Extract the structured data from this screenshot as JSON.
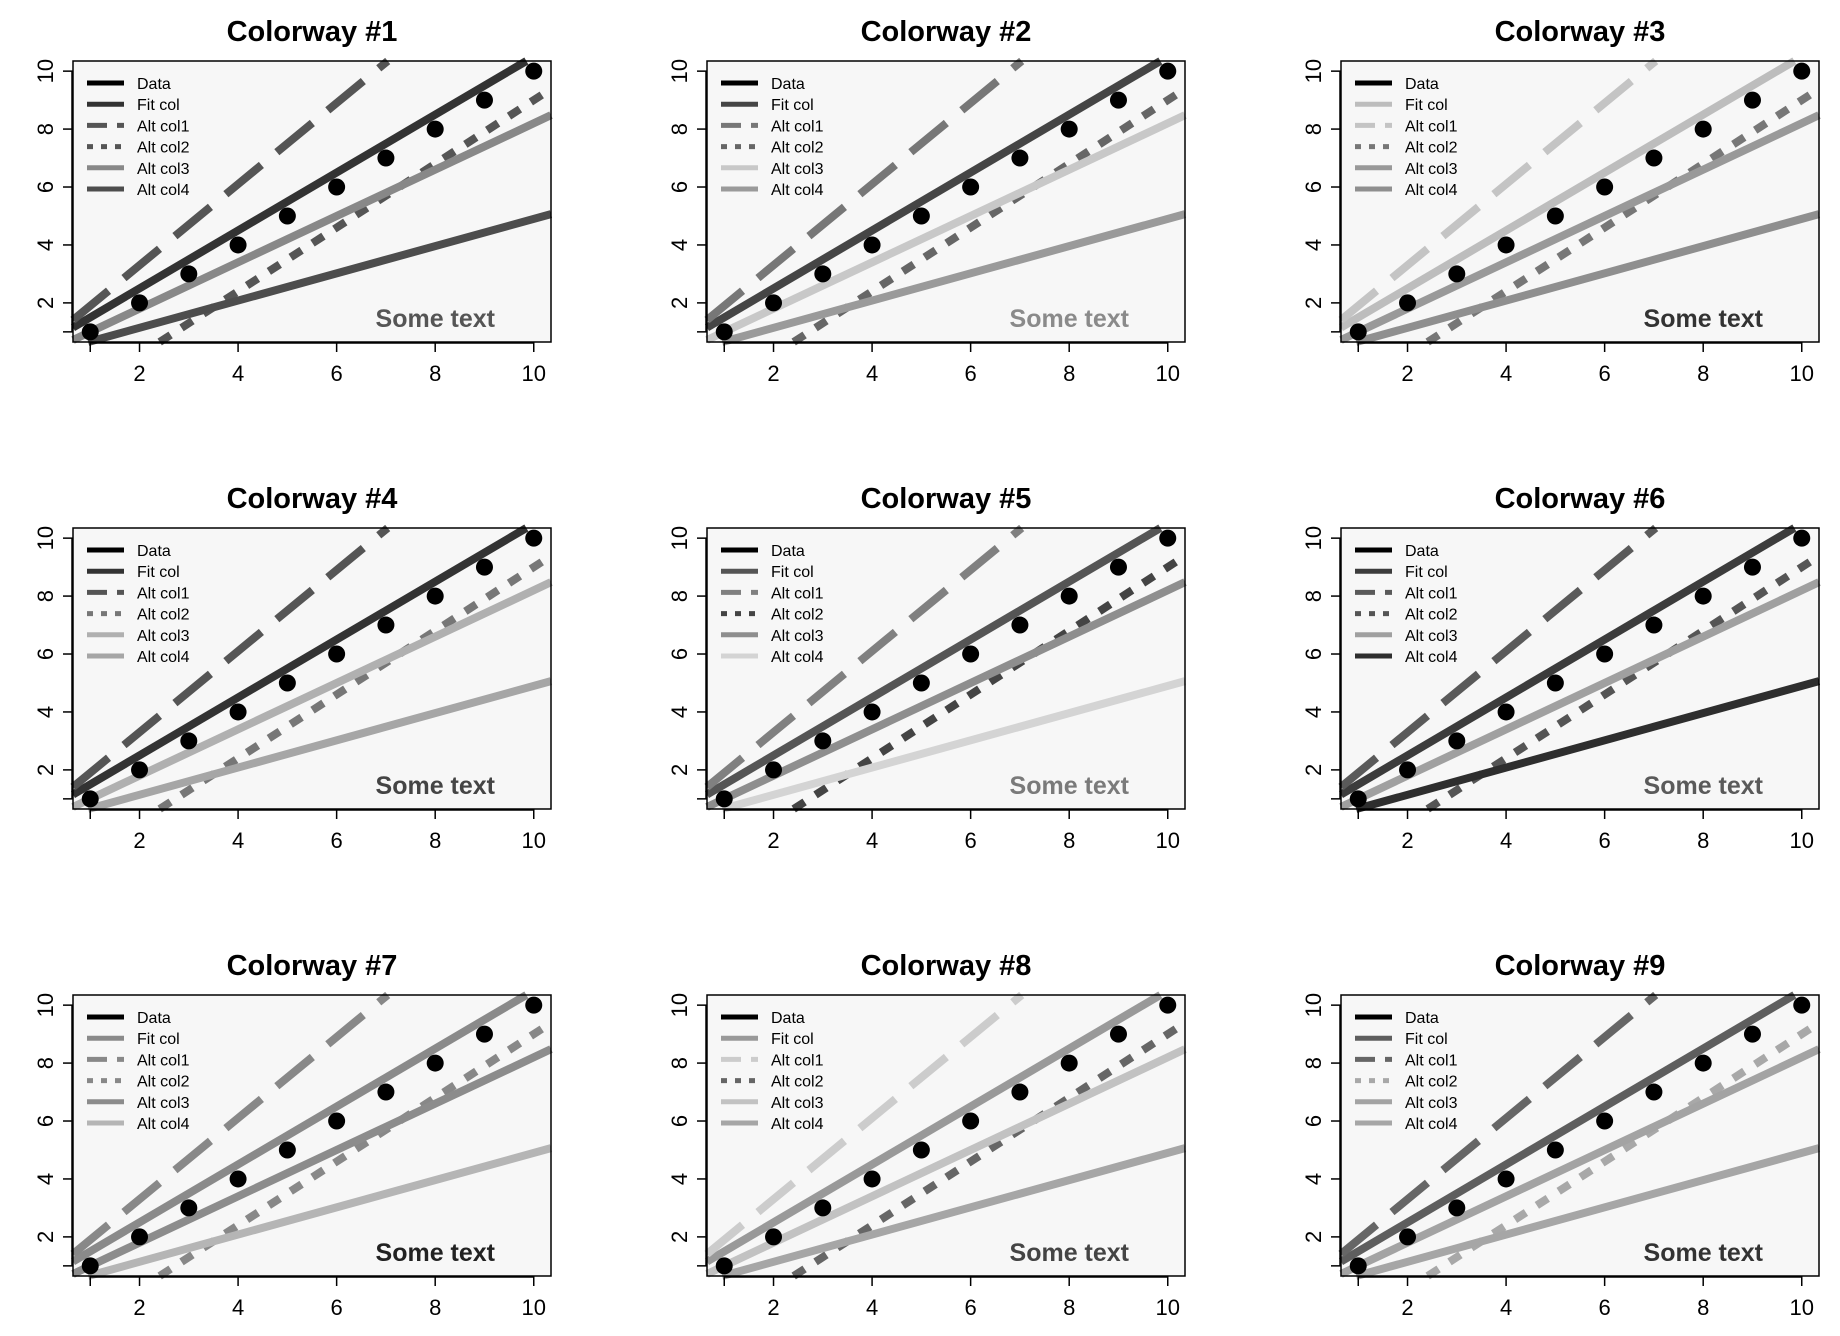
{
  "chart_data": [
    {
      "type": "line",
      "title": "Colorway #1",
      "x": [
        1,
        2,
        3,
        4,
        5,
        6,
        7,
        8,
        9,
        10
      ],
      "xlim": [
        0.65,
        10.35
      ],
      "ylim": [
        0.65,
        10.35
      ],
      "xticks": [
        "2",
        "4",
        "6",
        "8",
        "10"
      ],
      "yticks": [
        "2",
        "4",
        "6",
        "8",
        "10"
      ],
      "grid": false,
      "legend_position": "top-left",
      "annotation": "Some text",
      "annotation_color": "#555555",
      "series": [
        {
          "name": "Data",
          "kind": "points",
          "color": "#000000",
          "values": [
            1,
            2,
            3,
            4,
            5,
            6,
            7,
            8,
            9,
            10
          ]
        },
        {
          "name": "Fit col",
          "kind": "line",
          "dash": "solid",
          "color": "#333333",
          "intercept": 0.5,
          "slope": 1.0
        },
        {
          "name": "Alt col1",
          "kind": "line",
          "dash": "long",
          "color": "#555555",
          "intercept": 0.5,
          "slope": 1.4
        },
        {
          "name": "Alt col2",
          "kind": "line",
          "dash": "short",
          "color": "#555555",
          "intercept": -2.0,
          "slope": 1.1
        },
        {
          "name": "Alt col3",
          "kind": "line",
          "dash": "solid",
          "color": "#888888",
          "intercept": 0.2,
          "slope": 0.8
        },
        {
          "name": "Alt col4",
          "kind": "line",
          "dash": "solid",
          "color": "#4d4d4d",
          "intercept": 0.2,
          "slope": 0.47
        }
      ]
    },
    {
      "type": "line",
      "title": "Colorway #2",
      "x": [
        1,
        2,
        3,
        4,
        5,
        6,
        7,
        8,
        9,
        10
      ],
      "xlim": [
        0.65,
        10.35
      ],
      "ylim": [
        0.65,
        10.35
      ],
      "xticks": [
        "2",
        "4",
        "6",
        "8",
        "10"
      ],
      "yticks": [
        "2",
        "4",
        "6",
        "8",
        "10"
      ],
      "grid": false,
      "legend_position": "top-left",
      "annotation": "Some text",
      "annotation_color": "#8a8a8a",
      "series": [
        {
          "name": "Data",
          "kind": "points",
          "color": "#000000",
          "values": [
            1,
            2,
            3,
            4,
            5,
            6,
            7,
            8,
            9,
            10
          ]
        },
        {
          "name": "Fit col",
          "kind": "line",
          "dash": "solid",
          "color": "#454545",
          "intercept": 0.5,
          "slope": 1.0
        },
        {
          "name": "Alt col1",
          "kind": "line",
          "dash": "long",
          "color": "#777777",
          "intercept": 0.5,
          "slope": 1.4
        },
        {
          "name": "Alt col2",
          "kind": "line",
          "dash": "short",
          "color": "#666666",
          "intercept": -2.0,
          "slope": 1.1
        },
        {
          "name": "Alt col3",
          "kind": "line",
          "dash": "solid",
          "color": "#c8c8c8",
          "intercept": 0.2,
          "slope": 0.8
        },
        {
          "name": "Alt col4",
          "kind": "line",
          "dash": "solid",
          "color": "#9a9a9a",
          "intercept": 0.2,
          "slope": 0.47
        }
      ]
    },
    {
      "type": "line",
      "title": "Colorway #3",
      "x": [
        1,
        2,
        3,
        4,
        5,
        6,
        7,
        8,
        9,
        10
      ],
      "xlim": [
        0.65,
        10.35
      ],
      "ylim": [
        0.65,
        10.35
      ],
      "xticks": [
        "2",
        "4",
        "6",
        "8",
        "10"
      ],
      "yticks": [
        "2",
        "4",
        "6",
        "8",
        "10"
      ],
      "grid": false,
      "legend_position": "top-left",
      "annotation": "Some text",
      "annotation_color": "#333333",
      "series": [
        {
          "name": "Data",
          "kind": "points",
          "color": "#000000",
          "values": [
            1,
            2,
            3,
            4,
            5,
            6,
            7,
            8,
            9,
            10
          ]
        },
        {
          "name": "Fit col",
          "kind": "line",
          "dash": "solid",
          "color": "#bdbdbd",
          "intercept": 0.5,
          "slope": 1.0
        },
        {
          "name": "Alt col1",
          "kind": "line",
          "dash": "long",
          "color": "#c4c4c4",
          "intercept": 0.5,
          "slope": 1.4
        },
        {
          "name": "Alt col2",
          "kind": "line",
          "dash": "short",
          "color": "#777777",
          "intercept": -2.0,
          "slope": 1.1
        },
        {
          "name": "Alt col3",
          "kind": "line",
          "dash": "solid",
          "color": "#999999",
          "intercept": 0.2,
          "slope": 0.8
        },
        {
          "name": "Alt col4",
          "kind": "line",
          "dash": "solid",
          "color": "#8f8f8f",
          "intercept": 0.2,
          "slope": 0.47
        }
      ]
    },
    {
      "type": "line",
      "title": "Colorway #4",
      "x": [
        1,
        2,
        3,
        4,
        5,
        6,
        7,
        8,
        9,
        10
      ],
      "xlim": [
        0.65,
        10.35
      ],
      "ylim": [
        0.65,
        10.35
      ],
      "xticks": [
        "2",
        "4",
        "6",
        "8",
        "10"
      ],
      "yticks": [
        "2",
        "4",
        "6",
        "8",
        "10"
      ],
      "grid": false,
      "legend_position": "top-left",
      "annotation": "Some text",
      "annotation_color": "#444444",
      "series": [
        {
          "name": "Data",
          "kind": "points",
          "color": "#000000",
          "values": [
            1,
            2,
            3,
            4,
            5,
            6,
            7,
            8,
            9,
            10
          ]
        },
        {
          "name": "Fit col",
          "kind": "line",
          "dash": "solid",
          "color": "#333333",
          "intercept": 0.5,
          "slope": 1.0
        },
        {
          "name": "Alt col1",
          "kind": "line",
          "dash": "long",
          "color": "#555555",
          "intercept": 0.5,
          "slope": 1.4
        },
        {
          "name": "Alt col2",
          "kind": "line",
          "dash": "short",
          "color": "#777777",
          "intercept": -2.0,
          "slope": 1.1
        },
        {
          "name": "Alt col3",
          "kind": "line",
          "dash": "solid",
          "color": "#b0b0b0",
          "intercept": 0.2,
          "slope": 0.8
        },
        {
          "name": "Alt col4",
          "kind": "line",
          "dash": "solid",
          "color": "#a6a6a6",
          "intercept": 0.2,
          "slope": 0.47
        }
      ]
    },
    {
      "type": "line",
      "title": "Colorway #5",
      "x": [
        1,
        2,
        3,
        4,
        5,
        6,
        7,
        8,
        9,
        10
      ],
      "xlim": [
        0.65,
        10.35
      ],
      "ylim": [
        0.65,
        10.35
      ],
      "xticks": [
        "2",
        "4",
        "6",
        "8",
        "10"
      ],
      "yticks": [
        "2",
        "4",
        "6",
        "8",
        "10"
      ],
      "grid": false,
      "legend_position": "top-left",
      "annotation": "Some text",
      "annotation_color": "#7a7a7a",
      "series": [
        {
          "name": "Data",
          "kind": "points",
          "color": "#000000",
          "values": [
            1,
            2,
            3,
            4,
            5,
            6,
            7,
            8,
            9,
            10
          ]
        },
        {
          "name": "Fit col",
          "kind": "line",
          "dash": "solid",
          "color": "#555555",
          "intercept": 0.5,
          "slope": 1.0
        },
        {
          "name": "Alt col1",
          "kind": "line",
          "dash": "long",
          "color": "#808080",
          "intercept": 0.5,
          "slope": 1.4
        },
        {
          "name": "Alt col2",
          "kind": "line",
          "dash": "short",
          "color": "#444444",
          "intercept": -2.0,
          "slope": 1.1
        },
        {
          "name": "Alt col3",
          "kind": "line",
          "dash": "solid",
          "color": "#8e8e8e",
          "intercept": 0.2,
          "slope": 0.8
        },
        {
          "name": "Alt col4",
          "kind": "line",
          "dash": "solid",
          "color": "#d4d4d4",
          "intercept": 0.2,
          "slope": 0.47
        }
      ]
    },
    {
      "type": "line",
      "title": "Colorway #6",
      "x": [
        1,
        2,
        3,
        4,
        5,
        6,
        7,
        8,
        9,
        10
      ],
      "xlim": [
        0.65,
        10.35
      ],
      "ylim": [
        0.65,
        10.35
      ],
      "xticks": [
        "2",
        "4",
        "6",
        "8",
        "10"
      ],
      "yticks": [
        "2",
        "4",
        "6",
        "8",
        "10"
      ],
      "grid": false,
      "legend_position": "top-left",
      "annotation": "Some text",
      "annotation_color": "#5a5a5a",
      "series": [
        {
          "name": "Data",
          "kind": "points",
          "color": "#000000",
          "values": [
            1,
            2,
            3,
            4,
            5,
            6,
            7,
            8,
            9,
            10
          ]
        },
        {
          "name": "Fit col",
          "kind": "line",
          "dash": "solid",
          "color": "#3c3c3c",
          "intercept": 0.5,
          "slope": 1.0
        },
        {
          "name": "Alt col1",
          "kind": "line",
          "dash": "long",
          "color": "#5a5a5a",
          "intercept": 0.5,
          "slope": 1.4
        },
        {
          "name": "Alt col2",
          "kind": "line",
          "dash": "short",
          "color": "#555555",
          "intercept": -2.0,
          "slope": 1.1
        },
        {
          "name": "Alt col3",
          "kind": "line",
          "dash": "solid",
          "color": "#a0a0a0",
          "intercept": 0.2,
          "slope": 0.8
        },
        {
          "name": "Alt col4",
          "kind": "line",
          "dash": "solid",
          "color": "#2e2e2e",
          "intercept": 0.2,
          "slope": 0.47
        }
      ]
    },
    {
      "type": "line",
      "title": "Colorway #7",
      "x": [
        1,
        2,
        3,
        4,
        5,
        6,
        7,
        8,
        9,
        10
      ],
      "xlim": [
        0.65,
        10.35
      ],
      "ylim": [
        0.65,
        10.35
      ],
      "xticks": [
        "2",
        "4",
        "6",
        "8",
        "10"
      ],
      "yticks": [
        "2",
        "4",
        "6",
        "8",
        "10"
      ],
      "grid": false,
      "legend_position": "top-left",
      "annotation": "Some text",
      "annotation_color": "#222222",
      "series": [
        {
          "name": "Data",
          "kind": "points",
          "color": "#000000",
          "values": [
            1,
            2,
            3,
            4,
            5,
            6,
            7,
            8,
            9,
            10
          ]
        },
        {
          "name": "Fit col",
          "kind": "line",
          "dash": "solid",
          "color": "#8a8a8a",
          "intercept": 0.5,
          "slope": 1.0
        },
        {
          "name": "Alt col1",
          "kind": "line",
          "dash": "long",
          "color": "#888888",
          "intercept": 0.5,
          "slope": 1.4
        },
        {
          "name": "Alt col2",
          "kind": "line",
          "dash": "short",
          "color": "#888888",
          "intercept": -2.0,
          "slope": 1.1
        },
        {
          "name": "Alt col3",
          "kind": "line",
          "dash": "solid",
          "color": "#8c8c8c",
          "intercept": 0.2,
          "slope": 0.8
        },
        {
          "name": "Alt col4",
          "kind": "line",
          "dash": "solid",
          "color": "#b5b5b5",
          "intercept": 0.2,
          "slope": 0.47
        }
      ]
    },
    {
      "type": "line",
      "title": "Colorway #8",
      "x": [
        1,
        2,
        3,
        4,
        5,
        6,
        7,
        8,
        9,
        10
      ],
      "xlim": [
        0.65,
        10.35
      ],
      "ylim": [
        0.65,
        10.35
      ],
      "xticks": [
        "2",
        "4",
        "6",
        "8",
        "10"
      ],
      "yticks": [
        "2",
        "4",
        "6",
        "8",
        "10"
      ],
      "grid": false,
      "legend_position": "top-left",
      "annotation": "Some text",
      "annotation_color": "#444444",
      "series": [
        {
          "name": "Data",
          "kind": "points",
          "color": "#000000",
          "values": [
            1,
            2,
            3,
            4,
            5,
            6,
            7,
            8,
            9,
            10
          ]
        },
        {
          "name": "Fit col",
          "kind": "line",
          "dash": "solid",
          "color": "#999999",
          "intercept": 0.5,
          "slope": 1.0
        },
        {
          "name": "Alt col1",
          "kind": "line",
          "dash": "long",
          "color": "#cccccc",
          "intercept": 0.5,
          "slope": 1.4
        },
        {
          "name": "Alt col2",
          "kind": "line",
          "dash": "short",
          "color": "#666666",
          "intercept": -2.0,
          "slope": 1.1
        },
        {
          "name": "Alt col3",
          "kind": "line",
          "dash": "solid",
          "color": "#c2c2c2",
          "intercept": 0.2,
          "slope": 0.8
        },
        {
          "name": "Alt col4",
          "kind": "line",
          "dash": "solid",
          "color": "#a6a6a6",
          "intercept": 0.2,
          "slope": 0.47
        }
      ]
    },
    {
      "type": "line",
      "title": "Colorway #9",
      "x": [
        1,
        2,
        3,
        4,
        5,
        6,
        7,
        8,
        9,
        10
      ],
      "xlim": [
        0.65,
        10.35
      ],
      "ylim": [
        0.65,
        10.35
      ],
      "xticks": [
        "2",
        "4",
        "6",
        "8",
        "10"
      ],
      "yticks": [
        "2",
        "4",
        "6",
        "8",
        "10"
      ],
      "grid": false,
      "legend_position": "top-left",
      "annotation": "Some text",
      "annotation_color": "#333333",
      "series": [
        {
          "name": "Data",
          "kind": "points",
          "color": "#000000",
          "values": [
            1,
            2,
            3,
            4,
            5,
            6,
            7,
            8,
            9,
            10
          ]
        },
        {
          "name": "Fit col",
          "kind": "line",
          "dash": "solid",
          "color": "#5e5e5e",
          "intercept": 0.5,
          "slope": 1.0
        },
        {
          "name": "Alt col1",
          "kind": "line",
          "dash": "long",
          "color": "#666666",
          "intercept": 0.5,
          "slope": 1.4
        },
        {
          "name": "Alt col2",
          "kind": "line",
          "dash": "short",
          "color": "#a8a8a8",
          "intercept": -2.0,
          "slope": 1.1
        },
        {
          "name": "Alt col3",
          "kind": "line",
          "dash": "solid",
          "color": "#a3a3a3",
          "intercept": 0.2,
          "slope": 0.8
        },
        {
          "name": "Alt col4",
          "kind": "line",
          "dash": "solid",
          "color": "#a6a6a6",
          "intercept": 0.2,
          "slope": 0.47
        }
      ]
    }
  ]
}
